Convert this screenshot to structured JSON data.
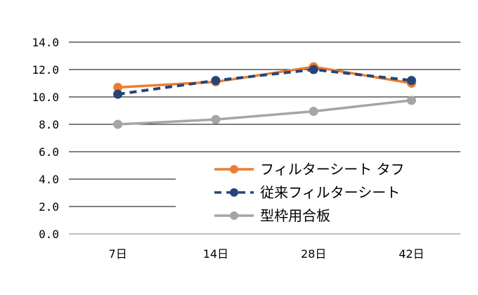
{
  "chart_data": {
    "type": "line",
    "categories": [
      "7日",
      "14日",
      "28日",
      "42日"
    ],
    "ylim": [
      0,
      14
    ],
    "y_ticks": [
      "0.0",
      "2.0",
      "4.0",
      "6.0",
      "8.0",
      "10.0",
      "12.0",
      "14.0"
    ],
    "grid": true,
    "legend_position": "bottom-right inside plot",
    "series": [
      {
        "name": "フィルターシート タフ",
        "values": [
          10.7,
          11.1,
          12.2,
          11.0
        ],
        "color": "#ED7D31",
        "line_style": "solid"
      },
      {
        "name": "従来フィルターシート",
        "values": [
          10.2,
          11.2,
          12.0,
          11.2
        ],
        "color": "#264478",
        "line_style": "dashed"
      },
      {
        "name": "型枠用合板",
        "values": [
          8.0,
          8.35,
          8.95,
          9.75
        ],
        "color": "#A5A5A5",
        "line_style": "solid"
      }
    ]
  }
}
